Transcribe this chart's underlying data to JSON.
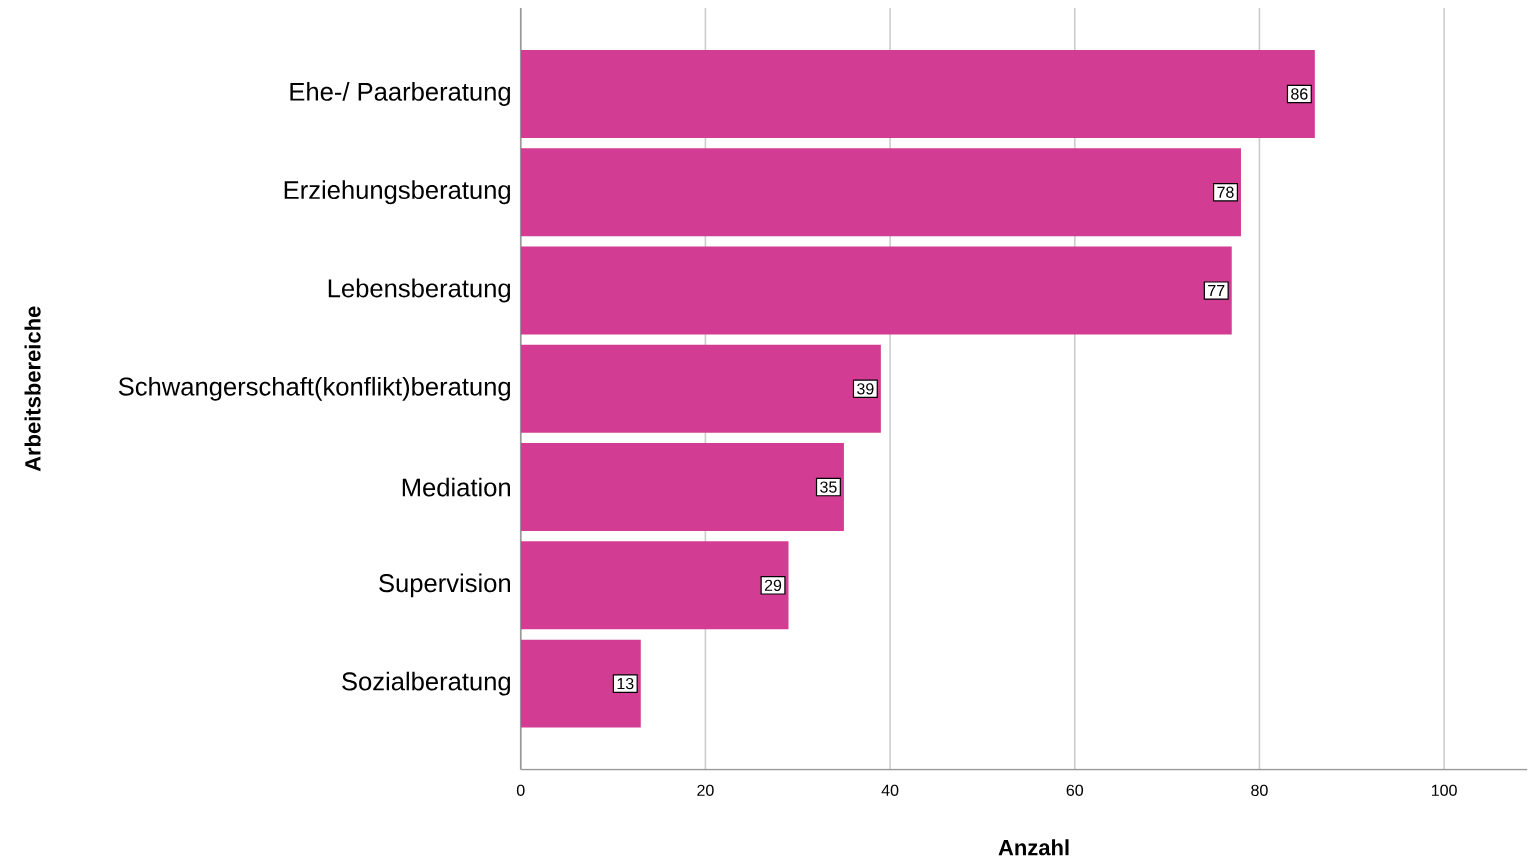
{
  "chart_data": {
    "type": "bar",
    "orientation": "horizontal",
    "xlabel": "Anzahl",
    "ylabel": "Arbeitsbereiche",
    "categories": [
      "Ehe-/ Paarberatung",
      "Erziehungsberatung",
      "Lebensberatung",
      "Schwangerschaft(konflikt)beratung",
      "Mediation",
      "Supervision",
      "Sozialberatung"
    ],
    "values": [
      86,
      78,
      77,
      39,
      35,
      29,
      13
    ],
    "color": "#d23c93",
    "xlim": [
      0,
      109
    ],
    "xticks": [
      0,
      20,
      40,
      60,
      80,
      100
    ],
    "grid": "x",
    "data_labels": true
  }
}
